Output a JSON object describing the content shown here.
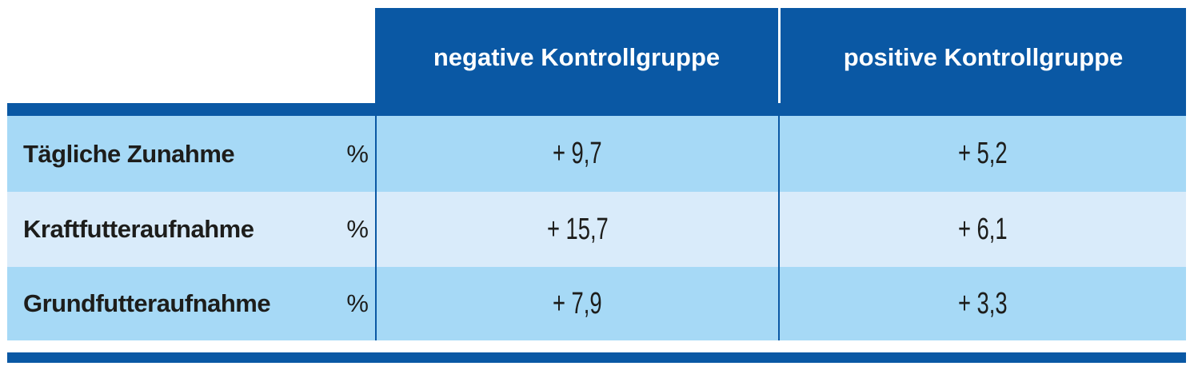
{
  "colors": {
    "blue": "#0a58a4",
    "row_light": "#a6d9f6",
    "row_lighter": "#d9ebfa",
    "text_dark": "#1d1d1b",
    "header_text": "#ffffff",
    "white": "#ffffff"
  },
  "chart_data": {
    "type": "table",
    "columns": [
      "negative Kontrollgruppe",
      "positive Kontrollgruppe"
    ],
    "unit": "%",
    "rows": [
      {
        "label": "Tägliche Zunahme",
        "unit": "%",
        "display": [
          "+ 9,7",
          "+ 5,2"
        ],
        "values": [
          9.7,
          5.2
        ]
      },
      {
        "label": "Kraftfutteraufnahme",
        "unit": "%",
        "display": [
          "+ 15,7",
          "+ 6,1"
        ],
        "values": [
          15.7,
          6.1
        ]
      },
      {
        "label": "Grundfutteraufnahme",
        "unit": "%",
        "display": [
          "+ 7,9",
          "+ 3,3"
        ],
        "values": [
          7.9,
          3.3
        ]
      }
    ],
    "layout": {
      "header_background": "#0a58a4",
      "row_backgrounds_alternate": true,
      "grid": "column dividers only"
    }
  }
}
